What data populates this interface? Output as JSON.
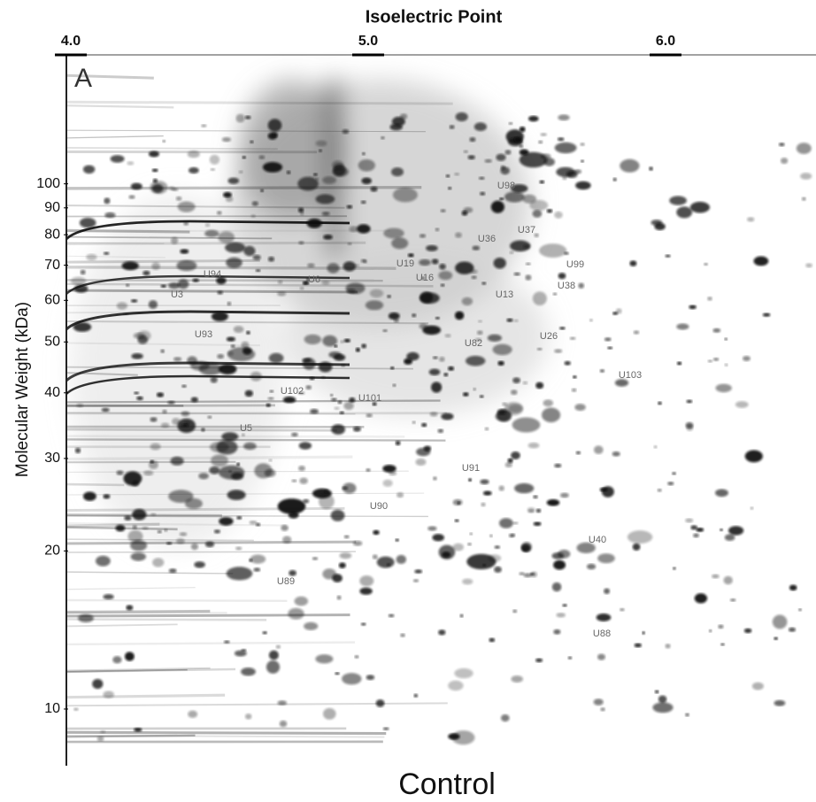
{
  "chart_data": {
    "type": "gel",
    "panel_label": "A",
    "title": "Isoelectric Point",
    "ylabel": "Molecular Weight (kDa)",
    "caption": "Control",
    "xlim": [
      3.985,
      6.506
    ],
    "xticks": [
      {
        "value": 4,
        "label": "4.0"
      },
      {
        "value": 5,
        "label": "5.0"
      },
      {
        "value": 6,
        "label": "6.0"
      }
    ],
    "ylim": [
      7.8,
      176
    ],
    "yticks": [
      100,
      90,
      80,
      70,
      60,
      50,
      40,
      30,
      20,
      10
    ],
    "log_scale": true,
    "spot_labels": [
      "U98",
      "U37",
      "U36",
      "U99",
      "U38",
      "U94",
      "U6",
      "U19",
      "U16",
      "U3",
      "U13",
      "U93",
      "U26",
      "U82",
      "U103",
      "U102",
      "U101",
      "U5",
      "U91",
      "U90",
      "U40",
      "U89",
      "U88"
    ]
  }
}
